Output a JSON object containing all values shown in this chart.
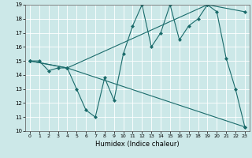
{
  "xlabel": "Humidex (Indice chaleur)",
  "xlim": [
    -0.5,
    23.5
  ],
  "ylim": [
    10,
    19
  ],
  "xticks": [
    0,
    1,
    2,
    3,
    4,
    5,
    6,
    7,
    8,
    9,
    10,
    11,
    12,
    13,
    14,
    15,
    16,
    17,
    18,
    19,
    20,
    21,
    22,
    23
  ],
  "yticks": [
    10,
    11,
    12,
    13,
    14,
    15,
    16,
    17,
    18,
    19
  ],
  "bg_color": "#cce8e8",
  "line_color": "#1a6b6b",
  "series": [
    {
      "x": [
        0,
        1,
        2,
        3,
        4,
        5,
        6,
        7,
        8,
        9,
        10,
        11,
        12,
        13,
        14,
        15,
        16,
        17,
        18,
        19,
        20,
        21,
        22,
        23
      ],
      "y": [
        15,
        15,
        14.3,
        14.5,
        14.5,
        13,
        11.5,
        11,
        13.8,
        12.2,
        15.5,
        17.5,
        19,
        16,
        17,
        19,
        16.5,
        17.5,
        18,
        19,
        18.5,
        15.2,
        13,
        10.3
      ]
    },
    {
      "x": [
        0,
        4,
        23
      ],
      "y": [
        15,
        14.5,
        10.3
      ]
    },
    {
      "x": [
        0,
        4,
        19,
        23
      ],
      "y": [
        15,
        14.5,
        19,
        18.5
      ]
    }
  ]
}
